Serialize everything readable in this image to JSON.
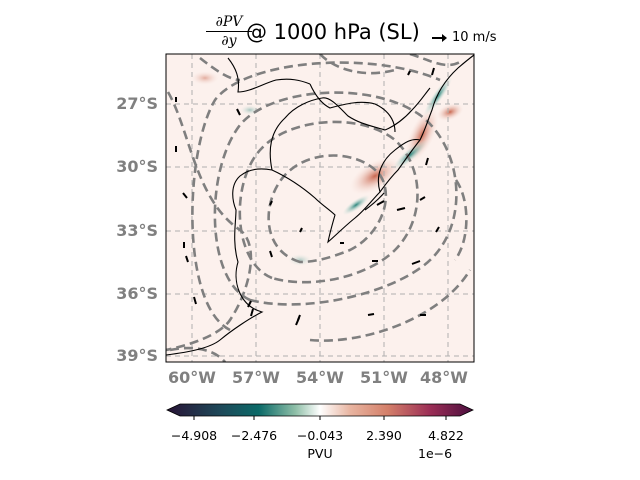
{
  "title": {
    "numerator": "∂PV",
    "denominator": "∂y",
    "text": "@ 1000 hPa (SL)"
  },
  "quiver_key": {
    "label": "10 m/s"
  },
  "map": {
    "lat_labels": [
      "27°S",
      "30°S",
      "33°S",
      "36°S",
      "39°S"
    ],
    "lon_labels": [
      "60°W",
      "57°W",
      "54°W",
      "51°W",
      "48°W"
    ],
    "lon_range": [
      -61.2,
      -46.8
    ],
    "lat_range": [
      -39.2,
      -24.8
    ]
  },
  "colorbar": {
    "ticks": [
      "−4.908",
      "−2.476",
      "−0.043",
      "2.390",
      "4.822"
    ],
    "label": "PVU",
    "exponent": "1e−6",
    "colormap": [
      "#281435",
      "#0b6a68",
      "#ffffff",
      "#d4806a",
      "#4a0e3e"
    ]
  }
}
